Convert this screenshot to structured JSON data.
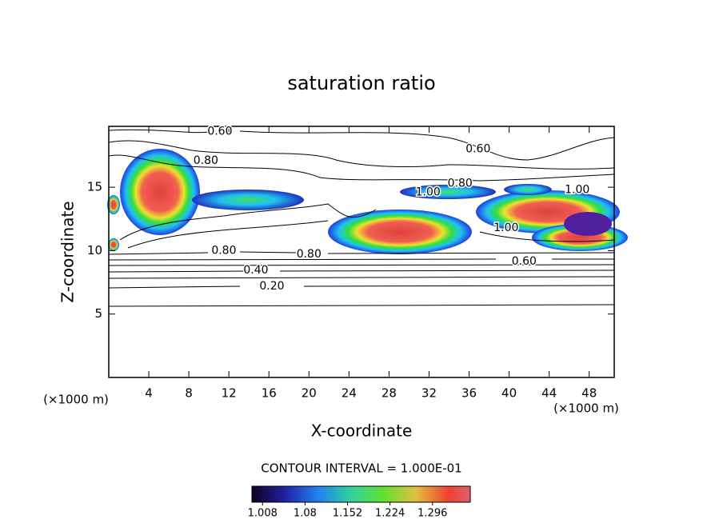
{
  "chart_data": {
    "type": "contour",
    "title": "saturation ratio",
    "xlabel": "X-coordinate",
    "ylabel": "Z-coordinate",
    "xunit": "(×1000 m)",
    "yunit": "(×1000 m)",
    "xlim": [
      0,
      50.5
    ],
    "ylim": [
      0,
      19.8
    ],
    "xticks": [
      4,
      8,
      12,
      16,
      20,
      24,
      28,
      32,
      36,
      40,
      44,
      48
    ],
    "yticks": [
      5,
      10,
      15
    ],
    "contour_labels": [
      {
        "text": "0.60",
        "x": 11.1,
        "y": 19.4
      },
      {
        "text": "0.60",
        "x": 36.9,
        "y": 18.0
      },
      {
        "text": "0.80",
        "x": 9.7,
        "y": 17.1
      },
      {
        "text": "0.80",
        "x": 11.5,
        "y": 10.0
      },
      {
        "text": "0.80",
        "x": 20.0,
        "y": 9.7
      },
      {
        "text": "0.40",
        "x": 14.7,
        "y": 8.45
      },
      {
        "text": "0.20",
        "x": 16.3,
        "y": 7.2
      },
      {
        "text": "0.60",
        "x": 41.5,
        "y": 9.15
      },
      {
        "text": "1.00",
        "x": 31.9,
        "y": 14.6
      },
      {
        "text": "0.80",
        "x": 35.1,
        "y": 15.3
      },
      {
        "text": "1.00",
        "x": 46.8,
        "y": 14.8
      },
      {
        "text": "1.00",
        "x": 39.7,
        "y": 11.8
      }
    ],
    "contour_interval": "CONTOUR INTERVAL = 1.000E-01",
    "colorbar": {
      "clim": [
        0.99,
        1.36
      ],
      "ticks": [
        1.008,
        1.08,
        1.152,
        1.224,
        1.296
      ]
    }
  }
}
